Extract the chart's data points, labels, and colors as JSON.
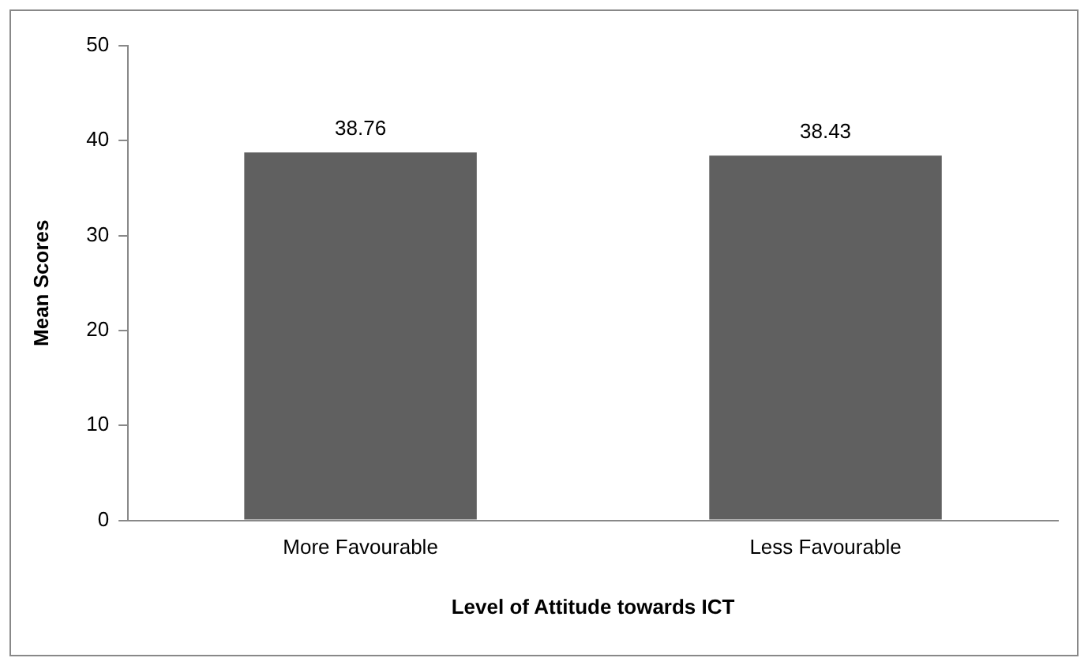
{
  "chart_data": {
    "type": "bar",
    "xlabel": "Level of Attitude towards ICT",
    "ylabel": "Mean Scores",
    "categories": [
      "More Favourable",
      "Less Favourable"
    ],
    "values": [
      38.76,
      38.43
    ],
    "color": "#606060",
    "ylim": [
      0,
      50
    ],
    "yticks": [
      0,
      10,
      20,
      30,
      40,
      50
    ],
    "grid": false,
    "legend": false,
    "data_labels": true
  }
}
